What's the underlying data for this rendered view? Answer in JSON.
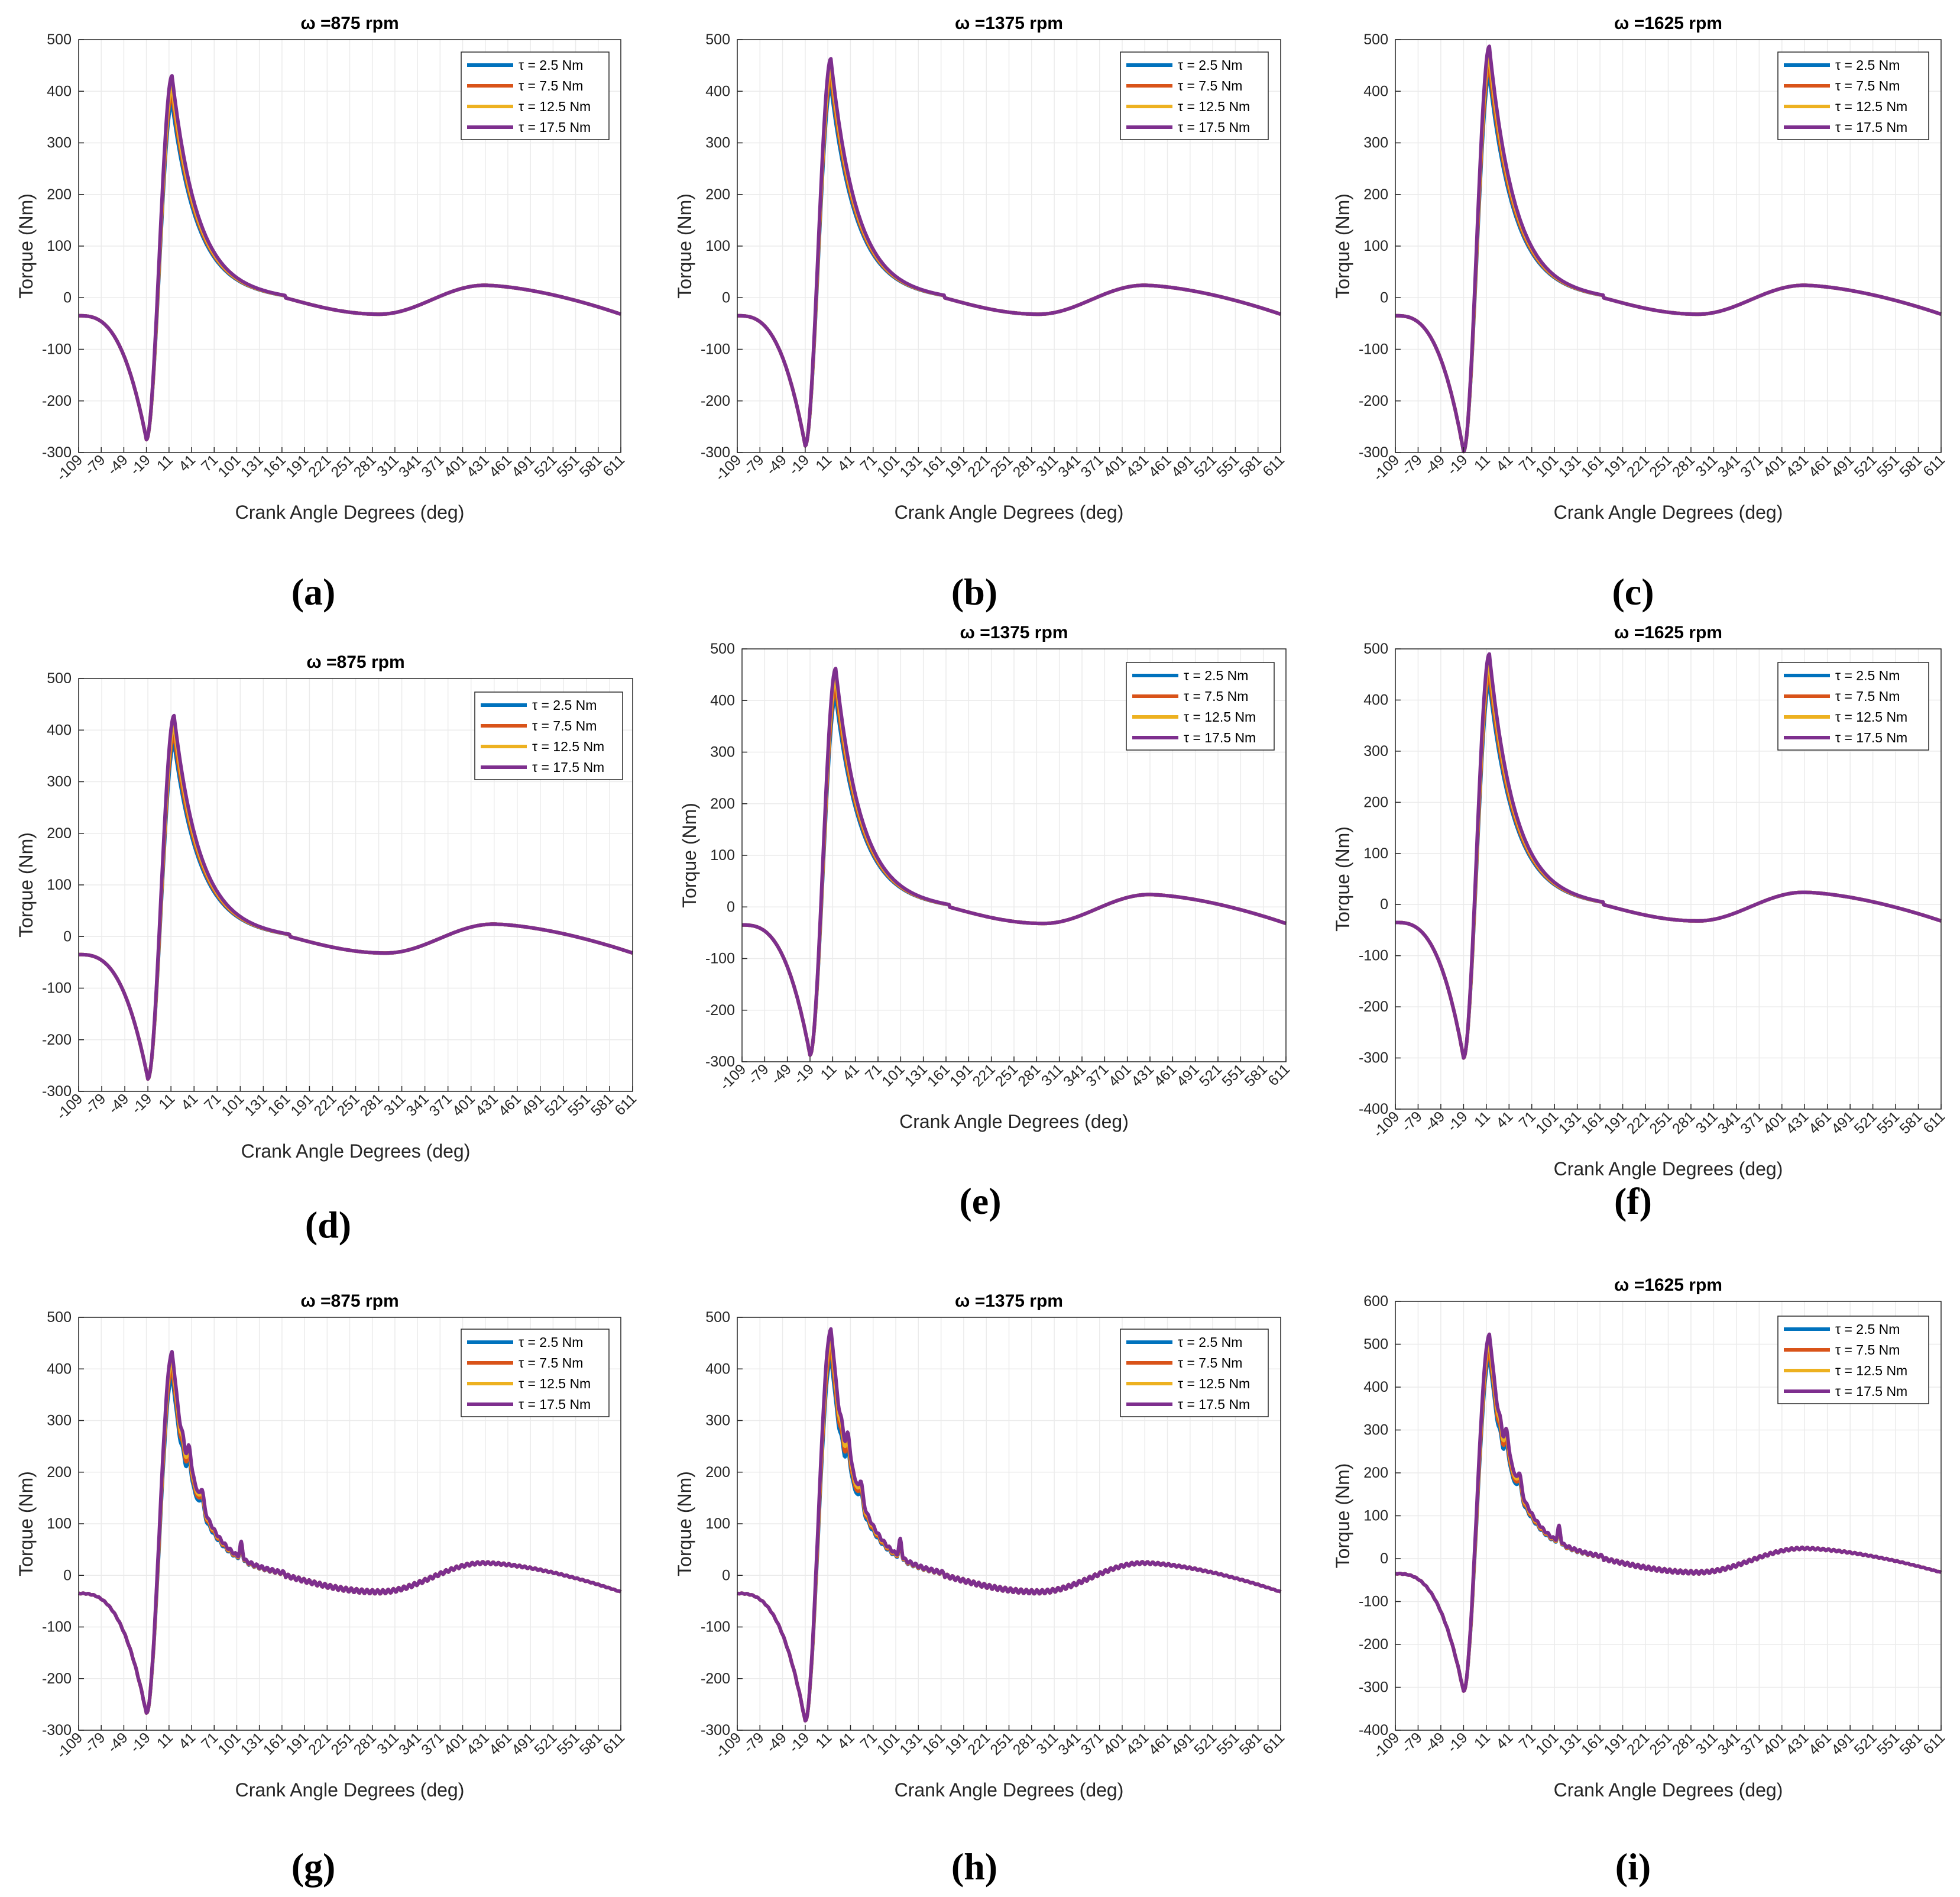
{
  "chart_data": [
    {
      "id": "a",
      "type": "line",
      "caption": "(a)",
      "title": "ω =875 rpm",
      "xlabel": "Crank Angle Degrees (deg)",
      "ylabel": "Torque (Nm)",
      "ylim": [
        -300,
        500
      ],
      "yticks": [
        "-300",
        "-200",
        "-100",
        "0",
        "100",
        "200",
        "300",
        "400",
        "500"
      ],
      "xlim": [
        -109,
        611
      ],
      "xticks": [
        "-109",
        "-79",
        "-49",
        "-19",
        "11",
        "41",
        "71",
        "101",
        "131",
        "161",
        "191",
        "221",
        "251",
        "281",
        "311",
        "341",
        "371",
        "401",
        "431",
        "461",
        "491",
        "521",
        "551",
        "581",
        "611"
      ],
      "legend": [
        "τ = 2.5 Nm",
        "τ = 7.5 Nm",
        "τ = 12.5 Nm",
        "τ = 17.5 Nm"
      ],
      "trough": -275,
      "peaks": [
        378,
        395,
        410,
        430
      ],
      "ripple": false
    },
    {
      "id": "b",
      "type": "line",
      "caption": "(b)",
      "title": "ω =1375 rpm",
      "xlabel": "Crank Angle Degrees (deg)",
      "ylabel": "Torque (Nm)",
      "ylim": [
        -300,
        500
      ],
      "yticks": [
        "-300",
        "-200",
        "-100",
        "0",
        "100",
        "200",
        "300",
        "400",
        "500"
      ],
      "xlim": [
        -109,
        611
      ],
      "xticks": [
        "-109",
        "-79",
        "-49",
        "-19",
        "11",
        "41",
        "71",
        "101",
        "131",
        "161",
        "191",
        "221",
        "251",
        "281",
        "311",
        "341",
        "371",
        "401",
        "431",
        "461",
        "491",
        "521",
        "551",
        "581",
        "611"
      ],
      "legend": [
        "τ = 2.5 Nm",
        "τ = 7.5 Nm",
        "τ = 12.5 Nm",
        "τ = 17.5 Nm"
      ],
      "trough": -287,
      "peaks": [
        410,
        428,
        445,
        463
      ],
      "ripple": false
    },
    {
      "id": "c",
      "type": "line",
      "caption": "(c)",
      "title": "ω =1625 rpm",
      "xlabel": "Crank Angle Degrees (deg)",
      "ylabel": "Torque (Nm)",
      "ylim": [
        -300,
        500
      ],
      "yticks": [
        "-300",
        "-200",
        "-100",
        "0",
        "100",
        "200",
        "300",
        "400",
        "500"
      ],
      "xlim": [
        -109,
        611
      ],
      "xticks": [
        "-109",
        "-79",
        "-49",
        "-19",
        "11",
        "41",
        "71",
        "101",
        "131",
        "161",
        "191",
        "221",
        "251",
        "281",
        "311",
        "341",
        "371",
        "401",
        "431",
        "461",
        "491",
        "521",
        "551",
        "581",
        "611"
      ],
      "legend": [
        "τ = 2.5 Nm",
        "τ = 7.5 Nm",
        "τ = 12.5 Nm",
        "τ = 17.5 Nm"
      ],
      "trough": -298,
      "peaks": [
        430,
        448,
        468,
        487
      ],
      "ripple": false
    },
    {
      "id": "d",
      "type": "line",
      "caption": "(d)",
      "title": "ω =875 rpm",
      "xlabel": "Crank Angle Degrees (deg)",
      "ylabel": "Torque (Nm)",
      "ylim": [
        -300,
        500
      ],
      "yticks": [
        "-300",
        "-200",
        "-100",
        "0",
        "100",
        "200",
        "300",
        "400",
        "500"
      ],
      "xlim": [
        -109,
        611
      ],
      "xticks": [
        "-109",
        "-79",
        "-49",
        "-19",
        "11",
        "41",
        "71",
        "101",
        "131",
        "161",
        "191",
        "221",
        "251",
        "281",
        "311",
        "341",
        "371",
        "401",
        "431",
        "461",
        "491",
        "521",
        "551",
        "581",
        "611"
      ],
      "legend": [
        "τ = 2.5 Nm",
        "τ = 7.5 Nm",
        "τ = 12.5 Nm",
        "τ = 17.5 Nm"
      ],
      "trough": -276,
      "peaks": [
        375,
        392,
        410,
        428
      ],
      "ripple": false
    },
    {
      "id": "e",
      "type": "line",
      "caption": "(e)",
      "title": "ω =1375 rpm",
      "xlabel": "Crank Angle Degrees (deg)",
      "ylabel": "Torque (Nm)",
      "ylim": [
        -300,
        500
      ],
      "yticks": [
        "-300",
        "-200",
        "-100",
        "0",
        "100",
        "200",
        "300",
        "400",
        "500"
      ],
      "xlim": [
        -109,
        611
      ],
      "xticks": [
        "-109",
        "-79",
        "-49",
        "-19",
        "11",
        "41",
        "71",
        "101",
        "131",
        "161",
        "191",
        "221",
        "251",
        "281",
        "311",
        "341",
        "371",
        "401",
        "431",
        "461",
        "491",
        "521",
        "551",
        "581",
        "611"
      ],
      "legend": [
        "τ = 2.5 Nm",
        "τ = 7.5 Nm",
        "τ = 12.5 Nm",
        "τ = 17.5 Nm"
      ],
      "trough": -287,
      "peaks": [
        408,
        426,
        444,
        462
      ],
      "ripple": false
    },
    {
      "id": "f",
      "type": "line",
      "caption": "(f)",
      "title": "ω =1625 rpm",
      "xlabel": "Crank Angle Degrees (deg)",
      "ylabel": "Torque (Nm)",
      "ylim": [
        -400,
        500
      ],
      "yticks": [
        "-400",
        "-300",
        "-200",
        "-100",
        "0",
        "100",
        "200",
        "300",
        "400",
        "500"
      ],
      "xlim": [
        -109,
        611
      ],
      "xticks": [
        "-109",
        "-79",
        "-49",
        "-19",
        "11",
        "41",
        "71",
        "101",
        "131",
        "161",
        "191",
        "221",
        "251",
        "281",
        "311",
        "341",
        "371",
        "401",
        "431",
        "461",
        "491",
        "521",
        "551",
        "581",
        "611"
      ],
      "legend": [
        "τ = 2.5 Nm",
        "τ = 7.5 Nm",
        "τ = 12.5 Nm",
        "τ = 17.5 Nm"
      ],
      "trough": -300,
      "peaks": [
        432,
        450,
        470,
        490
      ],
      "ripple": false
    },
    {
      "id": "g",
      "type": "line",
      "caption": "(g)",
      "title": "ω =875 rpm",
      "xlabel": "Crank Angle Degrees (deg)",
      "ylabel": "Torque (Nm)",
      "ylim": [
        -300,
        500
      ],
      "yticks": [
        "-300",
        "-200",
        "-100",
        "0",
        "100",
        "200",
        "300",
        "400",
        "500"
      ],
      "xlim": [
        -109,
        611
      ],
      "xticks": [
        "-109",
        "-79",
        "-49",
        "-19",
        "11",
        "41",
        "71",
        "101",
        "131",
        "161",
        "191",
        "221",
        "251",
        "281",
        "311",
        "341",
        "371",
        "401",
        "431",
        "461",
        "491",
        "521",
        "551",
        "581",
        "611"
      ],
      "legend": [
        "τ = 2.5 Nm",
        "τ = 7.5 Nm",
        "τ = 12.5 Nm",
        "τ = 17.5 Nm"
      ],
      "trough": -268,
      "peaks": [
        385,
        402,
        418,
        432
      ],
      "ripple": true
    },
    {
      "id": "h",
      "type": "line",
      "caption": "(h)",
      "title": "ω =1375 rpm",
      "xlabel": "Crank Angle Degrees (deg)",
      "ylabel": "Torque (Nm)",
      "ylim": [
        -300,
        500
      ],
      "yticks": [
        "-300",
        "-200",
        "-100",
        "0",
        "100",
        "200",
        "300",
        "400",
        "500"
      ],
      "xlim": [
        -109,
        611
      ],
      "xticks": [
        "-109",
        "-79",
        "-49",
        "-19",
        "11",
        "41",
        "71",
        "101",
        "131",
        "161",
        "191",
        "221",
        "251",
        "281",
        "311",
        "341",
        "371",
        "401",
        "431",
        "461",
        "491",
        "521",
        "551",
        "581",
        "611"
      ],
      "legend": [
        "τ = 2.5 Nm",
        "τ = 7.5 Nm",
        "τ = 12.5 Nm",
        "τ = 17.5 Nm"
      ],
      "trough": -283,
      "peaks": [
        420,
        438,
        458,
        476
      ],
      "ripple": true
    },
    {
      "id": "i",
      "type": "line",
      "caption": "(i)",
      "title": "ω =1625 rpm",
      "xlabel": "Crank Angle Degrees (deg)",
      "ylabel": "Torque (Nm)",
      "ylim": [
        -400,
        600
      ],
      "yticks": [
        "-400",
        "-300",
        "-200",
        "-100",
        "0",
        "100",
        "200",
        "300",
        "400",
        "500",
        "600"
      ],
      "xlim": [
        -109,
        611
      ],
      "xticks": [
        "-109",
        "-79",
        "-49",
        "-19",
        "11",
        "41",
        "71",
        "101",
        "131",
        "161",
        "191",
        "221",
        "251",
        "281",
        "311",
        "341",
        "371",
        "401",
        "431",
        "461",
        "491",
        "521",
        "551",
        "581",
        "611"
      ],
      "legend": [
        "τ = 2.5 Nm",
        "τ = 7.5 Nm",
        "τ = 12.5 Nm",
        "τ = 17.5 Nm"
      ],
      "trough": -310,
      "peaks": [
        468,
        485,
        505,
        522
      ],
      "ripple": true
    }
  ],
  "series_colors": [
    "#0072bd",
    "#d95319",
    "#edb120",
    "#7e2f8e"
  ]
}
